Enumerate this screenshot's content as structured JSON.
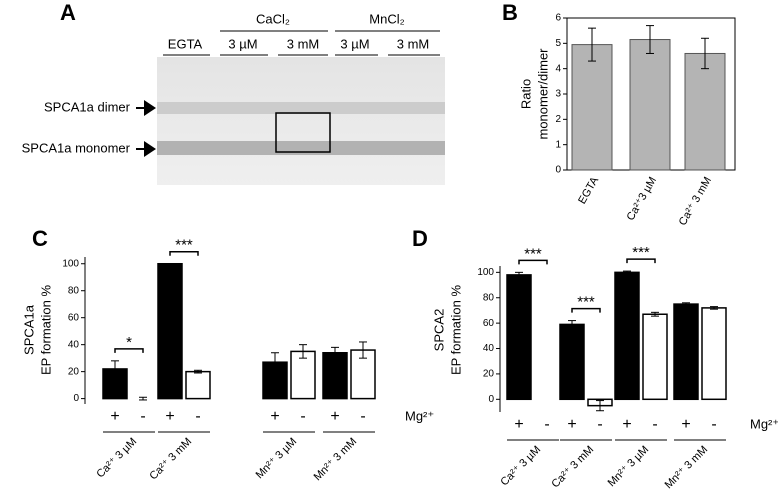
{
  "panel_a": {
    "letter": "A",
    "lanes": [
      "EGTA",
      "3 µM",
      "3 mM",
      "3 µM",
      "3 mM"
    ],
    "groups": [
      "CaCl₂",
      "MnCl₂"
    ],
    "bands": [
      "SPCA1a dimer",
      "SPCA1a monomer"
    ]
  },
  "chart_data": [
    {
      "type": "bar",
      "title": "B",
      "ylabel": [
        "Ratio",
        "monomer/dimer"
      ],
      "categories": [
        "EGTA",
        "Ca²⁺3 µM",
        "Ca²⁺ 3 mM"
      ],
      "values": [
        4.95,
        5.15,
        4.6
      ],
      "errors": [
        0.65,
        0.55,
        0.6
      ],
      "color": "#b4b4b4",
      "ylim": [
        0,
        6
      ],
      "yticks": [
        0,
        1,
        2,
        3,
        4,
        5,
        6
      ]
    },
    {
      "type": "bar",
      "title": "C",
      "ylabel": [
        "SPCA1a",
        "EP formation %"
      ],
      "legend_title": "Mg²⁺",
      "categories": [
        "Ca²⁺ 3 µM",
        "Ca²⁺ 3 mM",
        "Mn²⁺ 3 µM",
        "Mn²⁺ 3 mM"
      ],
      "series": [
        {
          "name": "+",
          "color": "#000000",
          "values": [
            22,
            100,
            27,
            34
          ],
          "errors": [
            6,
            0,
            7,
            4
          ]
        },
        {
          "name": "-",
          "color": "#ffffff",
          "values": [
            0,
            20,
            35,
            36
          ],
          "errors": [
            1,
            1,
            5,
            6
          ]
        }
      ],
      "significance": [
        "*",
        "***",
        null,
        null
      ],
      "ylim": [
        -4,
        105
      ],
      "yticks": [
        0,
        20,
        40,
        60,
        80,
        100
      ]
    },
    {
      "type": "bar",
      "title": "D",
      "ylabel": [
        "SPCA2",
        "EP formation %"
      ],
      "legend_title": "Mg²⁺",
      "categories": [
        "Ca²⁺ 3 µM",
        "Ca²⁺ 3 mM",
        "Mn²⁺ 3 µM",
        "Mn²⁺ 3 mM"
      ],
      "series": [
        {
          "name": "+",
          "color": "#000000",
          "values": [
            98,
            59,
            100,
            75
          ],
          "errors": [
            2,
            3,
            1,
            1
          ]
        },
        {
          "name": "-",
          "color": "#ffffff",
          "values": [
            null,
            -5,
            67,
            72
          ],
          "errors": [
            null,
            4,
            1.5,
            1
          ]
        }
      ],
      "significance": [
        "***",
        "***",
        "***",
        null
      ],
      "ylim": [
        -10,
        105
      ],
      "yticks": [
        0,
        20,
        40,
        60,
        80,
        100
      ]
    }
  ]
}
